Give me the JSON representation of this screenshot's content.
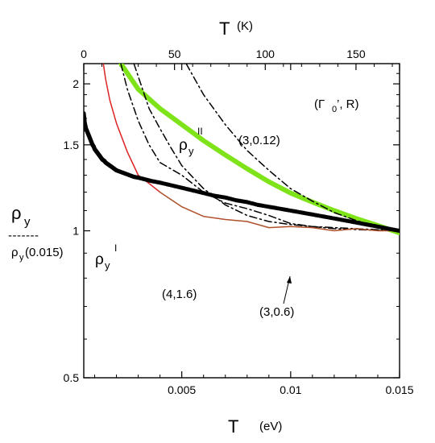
{
  "chart_data": {
    "type": "line",
    "xlabel": "T",
    "xunit": "(eV)",
    "x2label": "T",
    "x2unit": "(K)",
    "ylabel_main": "ρ",
    "ylabel_sub": "y",
    "ylabel_den_main": "ρ",
    "ylabel_den_sub": "y",
    "ylabel_den_arg": "(0.015)",
    "ylabel_bar": "-------",
    "xlim": [
      0.0005,
      0.015
    ],
    "ylim": [
      0.5,
      2.2
    ],
    "yscale": "log",
    "x2lim": [
      0,
      174
    ],
    "x_ticks": [
      "0.005",
      "0.01",
      "0.015"
    ],
    "x_tick_values": [
      0.005,
      0.01,
      0.015
    ],
    "y_ticks": [
      "0.5",
      "1",
      "1.5",
      "2"
    ],
    "y_tick_values": [
      0.5,
      1,
      1.5,
      2
    ],
    "x2_ticks": [
      "0",
      "50",
      "100",
      "150"
    ],
    "x2_tick_values": [
      0,
      50,
      100,
      150
    ],
    "series": [
      {
        "kind": "line",
        "color": "#7fe31a",
        "dash": "",
        "x": [
          0.0022,
          0.003,
          0.004,
          0.005,
          0.006,
          0.007,
          0.008,
          0.009,
          0.01,
          0.011,
          0.012,
          0.013,
          0.014,
          0.015
        ],
        "y": [
          2.2,
          1.95,
          1.78,
          1.65,
          1.53,
          1.43,
          1.34,
          1.26,
          1.195,
          1.145,
          1.1,
          1.06,
          1.025,
          0.99
        ]
      },
      {
        "kind": "line",
        "color": "#000000",
        "dash": "9,4,2,4",
        "x": [
          0.0052,
          0.006,
          0.007,
          0.008,
          0.009,
          0.01,
          0.011,
          0.012,
          0.013,
          0.014,
          0.015
        ],
        "y": [
          2.2,
          1.9,
          1.65,
          1.46,
          1.33,
          1.22,
          1.15,
          1.09,
          1.05,
          1.02,
          1.0
        ]
      },
      {
        "kind": "line",
        "color": "#000000",
        "dash": "9,4,2,4",
        "x": [
          0.0028,
          0.0035,
          0.004,
          0.0045,
          0.005,
          0.006,
          0.007,
          0.008,
          0.009,
          0.01,
          0.011,
          0.012,
          0.013,
          0.014,
          0.015
        ],
        "y": [
          2.2,
          1.78,
          1.62,
          1.48,
          1.36,
          1.22,
          1.13,
          1.075,
          1.045,
          1.03,
          1.02,
          1.015,
          1.01,
          1.005,
          1.0
        ]
      },
      {
        "kind": "line",
        "color": "#000000",
        "dash": "9,4,2,4",
        "x": [
          0.0022,
          0.0025,
          0.003,
          0.0035,
          0.004,
          0.005,
          0.006,
          0.007,
          0.008,
          0.009,
          0.01,
          0.011,
          0.012,
          0.013,
          0.014,
          0.015
        ],
        "y": [
          2.2,
          1.95,
          1.68,
          1.5,
          1.38,
          1.3,
          1.2,
          1.14,
          1.11,
          1.075,
          1.035,
          1.02,
          1.01,
          1.006,
          1.002,
          1.0
        ]
      },
      {
        "kind": "line",
        "color": "#dd2222",
        "dash": "",
        "x": [
          0.0014,
          0.0015,
          0.0017,
          0.002,
          0.0025,
          0.003,
          0.0035,
          0.004
        ],
        "y": [
          2.2,
          2.05,
          1.85,
          1.66,
          1.45,
          1.3,
          1.25,
          1.2
        ]
      },
      {
        "kind": "line",
        "color": "#b0502a",
        "dash": "",
        "x": [
          0.004,
          0.005,
          0.006,
          0.007,
          0.008,
          0.009,
          0.01,
          0.011,
          0.012,
          0.013,
          0.014,
          0.015
        ],
        "y": [
          1.2,
          1.12,
          1.07,
          1.055,
          1.045,
          1.015,
          1.02,
          1.015,
          1.0,
          1.01,
          1.0,
          1.0
        ]
      },
      {
        "kind": "scatter",
        "color": "#000000",
        "x": [
          0.0005,
          0.00055,
          0.0006,
          0.00065,
          0.0007,
          0.00075,
          0.0008,
          0.00085,
          0.0009,
          0.00095,
          0.001,
          0.00105,
          0.0011,
          0.00115,
          0.0012,
          0.00125,
          0.0013,
          0.00135,
          0.0014,
          0.00145,
          0.0015,
          0.0016,
          0.0017,
          0.0018,
          0.0019,
          0.002,
          0.0022,
          0.0024,
          0.0026,
          0.0028,
          0.003,
          0.0033,
          0.0036,
          0.004,
          0.0045,
          0.005,
          0.0055,
          0.006,
          0.0065,
          0.007,
          0.0075,
          0.008,
          0.0085,
          0.009,
          0.0095,
          0.01,
          0.0105,
          0.011,
          0.0115,
          0.012,
          0.0125,
          0.013,
          0.0135,
          0.014,
          0.0145,
          0.015
        ],
        "y": [
          1.74,
          1.66,
          1.62,
          1.6,
          1.58,
          1.56,
          1.54,
          1.52,
          1.5,
          1.49,
          1.47,
          1.46,
          1.45,
          1.44,
          1.43,
          1.42,
          1.41,
          1.4,
          1.395,
          1.39,
          1.38,
          1.37,
          1.36,
          1.35,
          1.34,
          1.33,
          1.32,
          1.31,
          1.3,
          1.29,
          1.285,
          1.275,
          1.265,
          1.255,
          1.24,
          1.225,
          1.21,
          1.195,
          1.18,
          1.17,
          1.155,
          1.145,
          1.13,
          1.12,
          1.11,
          1.1,
          1.09,
          1.08,
          1.07,
          1.06,
          1.05,
          1.04,
          1.03,
          1.02,
          1.01,
          1.0
        ]
      }
    ],
    "annotations": [
      {
        "id": "gamma",
        "main": "(Γ",
        "sub": "0",
        "rest": "’, R)"
      },
      {
        "id": "rho2",
        "main": "ρ",
        "sub": "y",
        "sup": "II"
      },
      {
        "id": "rho1",
        "main": "ρ",
        "sub": "y",
        "sup": "I"
      },
      {
        "id": "a1",
        "text": "(3,0.12)"
      },
      {
        "id": "a2",
        "text": "(4,1.6)"
      },
      {
        "id": "a3",
        "text": "(3,0.6)"
      }
    ]
  }
}
